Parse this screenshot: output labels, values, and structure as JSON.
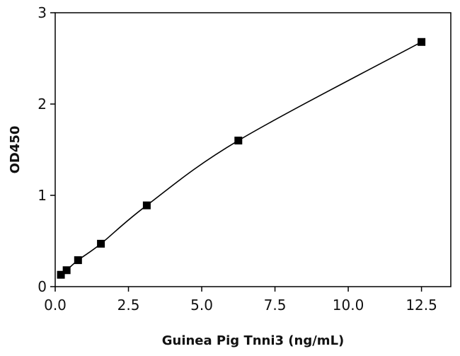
{
  "chart_data": {
    "type": "scatter",
    "title": "",
    "xlabel": "Guinea Pig Tnni3 (ng/mL)",
    "ylabel": "OD450",
    "xlim": [
      0,
      13.5
    ],
    "ylim": [
      0,
      3
    ],
    "x_ticks": [
      "0.0",
      "2.5",
      "5.0",
      "7.5",
      "10.0",
      "12.5"
    ],
    "y_ticks": [
      "0",
      "1",
      "2",
      "3"
    ],
    "grid": false,
    "legend": "none",
    "series": [
      {
        "points": [
          {
            "x": 0.195,
            "y": 0.13
          },
          {
            "x": 0.39,
            "y": 0.18
          },
          {
            "x": 0.78,
            "y": 0.29
          },
          {
            "x": 1.56,
            "y": 0.47
          },
          {
            "x": 3.125,
            "y": 0.89
          },
          {
            "x": 6.25,
            "y": 1.6
          },
          {
            "x": 12.5,
            "y": 2.68
          }
        ],
        "fit_curve": true,
        "marker": "square",
        "color": "#000000"
      }
    ]
  }
}
